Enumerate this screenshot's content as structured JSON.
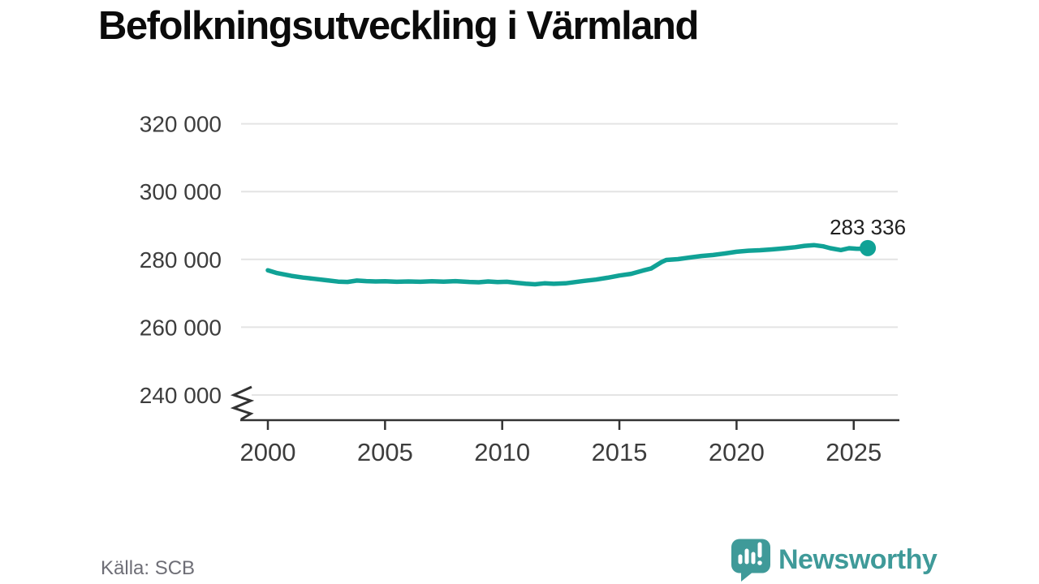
{
  "title": "Befolkningsutveckling i Värmland",
  "source": "Källa: SCB",
  "brand": {
    "name": "Newsworthy",
    "icon": "bar-chart-speech-bubble-icon"
  },
  "colors": {
    "line": "#10a296",
    "grid": "#e4e4e4",
    "axis": "#333333",
    "tick_label": "#3d3d3d",
    "title": "#0b0b0b",
    "end_label": "#1f1f1f",
    "source_text": "#6e6e76",
    "brand": "#3f9a99",
    "background": "#ffffff"
  },
  "chart_data": {
    "type": "line",
    "title": "Befolkningsutveckling i Värmland",
    "xlabel": "",
    "ylabel": "",
    "legend": "none",
    "grid": "horizontal",
    "x_axis": {
      "range": [
        2000,
        2026.9
      ],
      "axis_break": true,
      "ticks": [
        {
          "value": 2000,
          "label": "2000"
        },
        {
          "value": 2005,
          "label": "2005"
        },
        {
          "value": 2010,
          "label": "2010"
        },
        {
          "value": 2015,
          "label": "2015"
        },
        {
          "value": 2020,
          "label": "2020"
        },
        {
          "value": 2025,
          "label": "2025"
        }
      ]
    },
    "y_axis": {
      "range": [
        236000,
        324000
      ],
      "ticks": [
        {
          "value": 240000,
          "label": "240 000"
        },
        {
          "value": 260000,
          "label": "260 000"
        },
        {
          "value": 280000,
          "label": "280 000"
        },
        {
          "value": 300000,
          "label": "300 000"
        },
        {
          "value": 320000,
          "label": "320 000"
        }
      ]
    },
    "end_point": {
      "year": 2025.6,
      "value": 283336,
      "label": "283 336"
    },
    "series": [
      {
        "points": [
          [
            2000.0,
            276800
          ],
          [
            2000.4,
            275950
          ],
          [
            2001.0,
            275150
          ],
          [
            2001.5,
            274650
          ],
          [
            2002.0,
            274250
          ],
          [
            2002.5,
            273850
          ],
          [
            2003.0,
            273450
          ],
          [
            2003.4,
            273350
          ],
          [
            2003.8,
            273750
          ],
          [
            2004.2,
            273600
          ],
          [
            2004.6,
            273500
          ],
          [
            2005.0,
            273550
          ],
          [
            2005.5,
            273400
          ],
          [
            2006.0,
            273500
          ],
          [
            2006.5,
            273400
          ],
          [
            2007.0,
            273550
          ],
          [
            2007.5,
            273450
          ],
          [
            2008.0,
            273600
          ],
          [
            2008.6,
            273350
          ],
          [
            2009.0,
            273250
          ],
          [
            2009.4,
            273500
          ],
          [
            2009.8,
            273300
          ],
          [
            2010.2,
            273400
          ],
          [
            2010.6,
            273100
          ],
          [
            2011.0,
            272850
          ],
          [
            2011.4,
            272650
          ],
          [
            2011.8,
            272950
          ],
          [
            2012.2,
            272800
          ],
          [
            2012.7,
            272950
          ],
          [
            2013.0,
            273200
          ],
          [
            2013.5,
            273650
          ],
          [
            2014.0,
            274050
          ],
          [
            2014.5,
            274600
          ],
          [
            2015.0,
            275250
          ],
          [
            2015.5,
            275750
          ],
          [
            2016.0,
            276700
          ],
          [
            2016.35,
            277300
          ],
          [
            2016.8,
            279200
          ],
          [
            2017.0,
            279830
          ],
          [
            2017.5,
            280080
          ],
          [
            2018.0,
            280550
          ],
          [
            2018.5,
            281000
          ],
          [
            2019.0,
            281300
          ],
          [
            2019.5,
            281750
          ],
          [
            2020.0,
            282250
          ],
          [
            2020.5,
            282550
          ],
          [
            2021.0,
            282700
          ],
          [
            2021.5,
            282950
          ],
          [
            2022.0,
            283250
          ],
          [
            2022.5,
            283600
          ],
          [
            2022.9,
            284000
          ],
          [
            2023.3,
            284200
          ],
          [
            2023.7,
            283850
          ],
          [
            2024.0,
            283300
          ],
          [
            2024.45,
            282750
          ],
          [
            2024.8,
            283300
          ],
          [
            2025.1,
            283150
          ],
          [
            2025.35,
            283100
          ],
          [
            2025.6,
            283336
          ]
        ]
      }
    ]
  }
}
